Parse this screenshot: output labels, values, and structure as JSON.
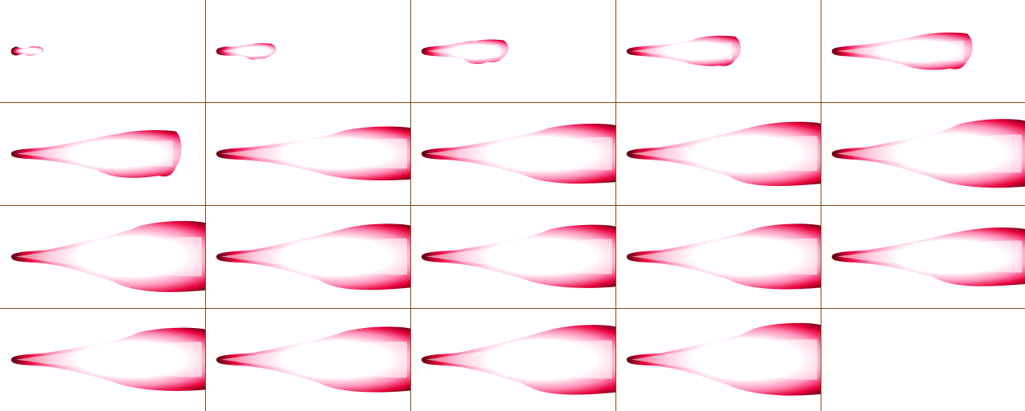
{
  "sheet": {
    "kind": "sprite-sheet",
    "subject": "flame-jet",
    "rows": 4,
    "columns": 5,
    "frame_count": 19,
    "colors": {
      "background": "#ffffff",
      "grid_line": "#8b4513",
      "flame_outer": "#5a0010",
      "flame_mid": "#e8003c",
      "flame_inner": "#ff8fb8",
      "flame_core": "#ffffff"
    },
    "frames": [
      {
        "growth": 0.13,
        "reach": 0.14,
        "bulge": 0.1,
        "tail": 0.05
      },
      {
        "growth": 0.28,
        "reach": 0.28,
        "bulge": 0.17,
        "tail": 0.06
      },
      {
        "growth": 0.42,
        "reach": 0.42,
        "bulge": 0.25,
        "tail": 0.07
      },
      {
        "growth": 0.56,
        "reach": 0.56,
        "bulge": 0.33,
        "tail": 0.07
      },
      {
        "growth": 0.7,
        "reach": 0.7,
        "bulge": 0.4,
        "tail": 0.08
      },
      {
        "growth": 0.85,
        "reach": 0.85,
        "bulge": 0.5,
        "tail": 0.08
      },
      {
        "growth": 0.95,
        "reach": 1.0,
        "bulge": 0.58,
        "tail": 0.09
      },
      {
        "growth": 1.0,
        "reach": 1.0,
        "bulge": 0.64,
        "tail": 0.09
      },
      {
        "growth": 1.0,
        "reach": 1.0,
        "bulge": 0.68,
        "tail": 0.09
      },
      {
        "growth": 1.0,
        "reach": 1.0,
        "bulge": 0.74,
        "tail": 0.09
      },
      {
        "growth": 1.0,
        "reach": 1.0,
        "bulge": 0.76,
        "tail": 0.09
      },
      {
        "growth": 1.0,
        "reach": 1.0,
        "bulge": 0.7,
        "tail": 0.09
      },
      {
        "growth": 1.0,
        "reach": 1.0,
        "bulge": 0.68,
        "tail": 0.09
      },
      {
        "growth": 1.0,
        "reach": 1.0,
        "bulge": 0.7,
        "tail": 0.09
      },
      {
        "growth": 1.0,
        "reach": 1.0,
        "bulge": 0.62,
        "tail": 0.09
      },
      {
        "growth": 1.0,
        "reach": 1.0,
        "bulge": 0.68,
        "tail": 0.09
      },
      {
        "growth": 1.0,
        "reach": 1.0,
        "bulge": 0.7,
        "tail": 0.09
      },
      {
        "growth": 1.0,
        "reach": 1.0,
        "bulge": 0.74,
        "tail": 0.09
      },
      {
        "growth": 1.0,
        "reach": 1.0,
        "bulge": 0.78,
        "tail": 0.09
      }
    ]
  }
}
